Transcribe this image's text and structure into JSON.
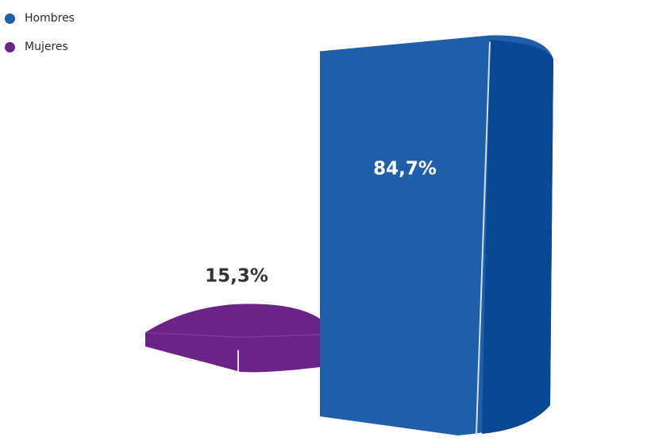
{
  "chart_data": {
    "type": "bar",
    "categories": [
      "Mujeres",
      "Hombres"
    ],
    "values": [
      15.3,
      84.7
    ],
    "data_labels": [
      "15,3%",
      "84,7%"
    ],
    "ylim": [
      0,
      100
    ],
    "grid": true,
    "legend": {
      "position": "top-left",
      "entries": [
        {
          "label": "Hombres",
          "color": "#1f5ea8"
        },
        {
          "label": "Mujeres",
          "color": "#6b2387"
        }
      ]
    },
    "colors": {
      "Mujeres": "#6b2387",
      "Hombres": "#1f5ea8"
    }
  }
}
